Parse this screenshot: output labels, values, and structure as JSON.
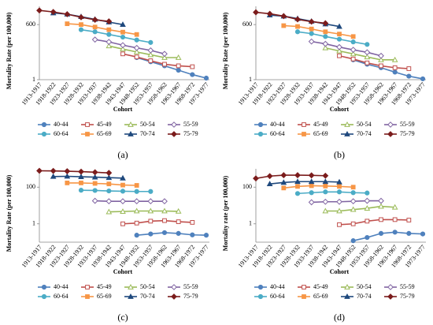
{
  "chart_data": [
    {
      "type": "line",
      "caption": "(a)",
      "ylabel": "Mortality Rate  (per 100,000)",
      "xlabel": "Cohort",
      "yscale": "log",
      "categories": [
        "1913-1917",
        "1918-1922",
        "1923-1927",
        "1928-1932",
        "1933-1937",
        "1938-1942",
        "1943-1947",
        "1948-1952",
        "1953-1957",
        "1958-1962",
        "1963-1967",
        "1968-1972",
        "1973-1977"
      ],
      "ylim": [
        1,
        5000
      ],
      "yticks": [
        1,
        600
      ],
      "series": [
        {
          "name": "40-44",
          "color": "#4f81bd",
          "marker": "circle",
          "values": [
            null,
            null,
            null,
            null,
            null,
            null,
            null,
            13,
            8,
            5,
            3,
            1.8,
            1.2
          ]
        },
        {
          "name": "45-49",
          "color": "#c0504d",
          "marker": "square-open",
          "values": [
            null,
            null,
            null,
            null,
            null,
            null,
            20,
            14,
            9,
            6,
            5,
            4.5,
            null
          ]
        },
        {
          "name": "50-54",
          "color": "#9bbb59",
          "marker": "triangle-open",
          "values": [
            null,
            null,
            null,
            null,
            null,
            50,
            35,
            25,
            18,
            13,
            13,
            null,
            null
          ]
        },
        {
          "name": "55-59",
          "color": "#8064a2",
          "marker": "diamond-open",
          "values": [
            null,
            null,
            null,
            null,
            105,
            80,
            55,
            40,
            30,
            20,
            null,
            null,
            null
          ]
        },
        {
          "name": "60-64",
          "color": "#4bacc6",
          "marker": "circle",
          "values": [
            null,
            null,
            null,
            330,
            260,
            190,
            140,
            100,
            75,
            null,
            null,
            null,
            null
          ]
        },
        {
          "name": "65-69",
          "color": "#f79646",
          "marker": "square",
          "values": [
            null,
            null,
            660,
            600,
            450,
            330,
            250,
            190,
            null,
            null,
            null,
            null,
            null
          ]
        },
        {
          "name": "70-74",
          "color": "#1f497d",
          "marker": "triangle",
          "values": [
            null,
            2300,
            2000,
            1500,
            1100,
            800,
            600,
            null,
            null,
            null,
            null,
            null,
            null
          ]
        },
        {
          "name": "75-79",
          "color": "#7b1c1c",
          "marker": "diamond",
          "values": [
            3100,
            2600,
            2000,
            1400,
            1050,
            870,
            null,
            null,
            null,
            null,
            null,
            null,
            null
          ]
        }
      ]
    },
    {
      "type": "line",
      "caption": "(b)",
      "ylabel": "Mortality Rate  (per 100,000)",
      "xlabel": "Cohort",
      "yscale": "log",
      "categories": [
        "1913-1917",
        "1918-1922",
        "1923-1927",
        "1928-1932",
        "1933-1937",
        "1938-1942",
        "1943-1947",
        "1948-1952",
        "1953-1957",
        "1958-1962",
        "1963-1967",
        "1968-1972",
        "1973-1977"
      ],
      "ylim": [
        1,
        5000
      ],
      "yticks": [
        1,
        600
      ],
      "series": [
        {
          "name": "40-44",
          "color": "#4f81bd",
          "marker": "circle",
          "values": [
            null,
            null,
            null,
            null,
            null,
            null,
            null,
            10,
            6,
            4,
            2.4,
            1.5,
            1.1
          ]
        },
        {
          "name": "45-49",
          "color": "#c0504d",
          "marker": "square-open",
          "values": [
            null,
            null,
            null,
            null,
            null,
            null,
            16,
            11,
            7,
            5,
            4,
            3.6,
            null
          ]
        },
        {
          "name": "50-54",
          "color": "#9bbb59",
          "marker": "triangle-open",
          "values": [
            null,
            null,
            null,
            null,
            null,
            40,
            28,
            20,
            14,
            10,
            10,
            null,
            null
          ]
        },
        {
          "name": "55-59",
          "color": "#8064a2",
          "marker": "diamond-open",
          "values": [
            null,
            null,
            null,
            null,
            84,
            64,
            44,
            32,
            24,
            16,
            null,
            null,
            null
          ]
        },
        {
          "name": "60-64",
          "color": "#4bacc6",
          "marker": "circle",
          "values": [
            null,
            null,
            null,
            260,
            210,
            150,
            110,
            80,
            60,
            null,
            null,
            null,
            null
          ]
        },
        {
          "name": "65-69",
          "color": "#f79646",
          "marker": "square",
          "values": [
            null,
            null,
            530,
            480,
            360,
            260,
            200,
            150,
            null,
            null,
            null,
            null,
            null
          ]
        },
        {
          "name": "70-74",
          "color": "#1f497d",
          "marker": "triangle",
          "values": [
            null,
            1800,
            1600,
            1200,
            880,
            640,
            480,
            null,
            null,
            null,
            null,
            null,
            null
          ]
        },
        {
          "name": "75-79",
          "color": "#7b1c1c",
          "marker": "diamond",
          "values": [
            2500,
            2100,
            1600,
            1100,
            840,
            700,
            null,
            null,
            null,
            null,
            null,
            null,
            null
          ]
        }
      ]
    },
    {
      "type": "line",
      "caption": "(c)",
      "ylabel": "Mortality Rate  (per 100,000)",
      "xlabel": "Cohort",
      "yscale": "log",
      "categories": [
        "1913-1917",
        "1918-1922",
        "1923-1927",
        "1928-1932",
        "1933-1937",
        "1938-1942",
        "1943-1947",
        "1948-1952",
        "1953-1957",
        "1958-1962",
        "1963-1967",
        "1968-1972",
        "1973-1977"
      ],
      "ylim": [
        0.1,
        1000
      ],
      "yticks": [
        1,
        100
      ],
      "series": [
        {
          "name": "40-44",
          "color": "#4f81bd",
          "marker": "circle",
          "values": [
            null,
            null,
            null,
            null,
            null,
            null,
            null,
            0.24,
            0.28,
            0.33,
            0.3,
            0.25,
            0.24
          ]
        },
        {
          "name": "45-49",
          "color": "#c0504d",
          "marker": "square-open",
          "values": [
            null,
            null,
            null,
            null,
            null,
            null,
            1,
            1.1,
            1.4,
            1.5,
            1.3,
            1.2,
            null
          ]
        },
        {
          "name": "50-54",
          "color": "#9bbb59",
          "marker": "triangle-open",
          "values": [
            null,
            null,
            null,
            null,
            null,
            4.5,
            4.7,
            5,
            5,
            5,
            4.8,
            null,
            null
          ]
        },
        {
          "name": "55-59",
          "color": "#8064a2",
          "marker": "diamond-open",
          "values": [
            null,
            null,
            null,
            null,
            18,
            17,
            17,
            17,
            17,
            17,
            null,
            null,
            null
          ]
        },
        {
          "name": "60-64",
          "color": "#4bacc6",
          "marker": "circle",
          "values": [
            null,
            null,
            null,
            68,
            66,
            62,
            60,
            58,
            58,
            null,
            null,
            null,
            null
          ]
        },
        {
          "name": "65-69",
          "color": "#f79646",
          "marker": "square",
          "values": [
            null,
            null,
            170,
            170,
            160,
            150,
            130,
            125,
            null,
            null,
            null,
            null,
            null
          ]
        },
        {
          "name": "70-74",
          "color": "#1f497d",
          "marker": "triangle",
          "values": [
            null,
            380,
            390,
            370,
            350,
            330,
            310,
            null,
            null,
            null,
            null,
            null,
            null
          ]
        },
        {
          "name": "75-79",
          "color": "#7b1c1c",
          "marker": "diamond",
          "values": [
            780,
            770,
            740,
            700,
            650,
            600,
            null,
            null,
            null,
            null,
            null,
            null,
            null
          ]
        }
      ]
    },
    {
      "type": "line",
      "caption": "(d)",
      "ylabel": "Mortality rate (per 100,000)",
      "xlabel": "Cohort",
      "yscale": "log",
      "categories": [
        "1913-1917",
        "1918-1922",
        "1923-1927",
        "1928-1932",
        "1933-1937",
        "1938-1942",
        "1943-1947",
        "1948-1952",
        "1953-1957",
        "1958-1962",
        "1963-1967",
        "1968-1972",
        "1973-1977"
      ],
      "ylim": [
        0.1,
        1000
      ],
      "yticks": [
        1,
        100
      ],
      "series": [
        {
          "name": "40-44",
          "color": "#4f81bd",
          "marker": "circle",
          "values": [
            null,
            null,
            null,
            null,
            null,
            null,
            null,
            0.12,
            0.18,
            0.3,
            0.35,
            0.3,
            0.28
          ]
        },
        {
          "name": "45-49",
          "color": "#c0504d",
          "marker": "square-open",
          "values": [
            null,
            null,
            null,
            null,
            null,
            null,
            0.9,
            1,
            1.4,
            1.7,
            1.7,
            1.6,
            null
          ]
        },
        {
          "name": "50-54",
          "color": "#9bbb59",
          "marker": "triangle-open",
          "values": [
            null,
            null,
            null,
            null,
            null,
            5,
            5,
            6,
            7,
            9,
            8,
            null,
            null
          ]
        },
        {
          "name": "55-59",
          "color": "#8064a2",
          "marker": "diamond-open",
          "values": [
            null,
            null,
            null,
            null,
            15,
            16,
            16,
            17,
            18,
            18,
            null,
            null,
            null
          ]
        },
        {
          "name": "60-64",
          "color": "#4bacc6",
          "marker": "circle",
          "values": [
            null,
            null,
            null,
            45,
            50,
            55,
            55,
            50,
            48,
            null,
            null,
            null,
            null
          ]
        },
        {
          "name": "65-69",
          "color": "#f79646",
          "marker": "square",
          "values": [
            null,
            null,
            90,
            110,
            120,
            115,
            110,
            100,
            null,
            null,
            null,
            null,
            null
          ]
        },
        {
          "name": "70-74",
          "color": "#1f497d",
          "marker": "triangle",
          "values": [
            null,
            150,
            180,
            200,
            200,
            200,
            190,
            null,
            null,
            null,
            null,
            null,
            null
          ]
        },
        {
          "name": "75-79",
          "color": "#7b1c1c",
          "marker": "diamond",
          "values": [
            300,
            400,
            450,
            450,
            440,
            420,
            null,
            null,
            null,
            null,
            null,
            null,
            null
          ]
        }
      ]
    }
  ]
}
